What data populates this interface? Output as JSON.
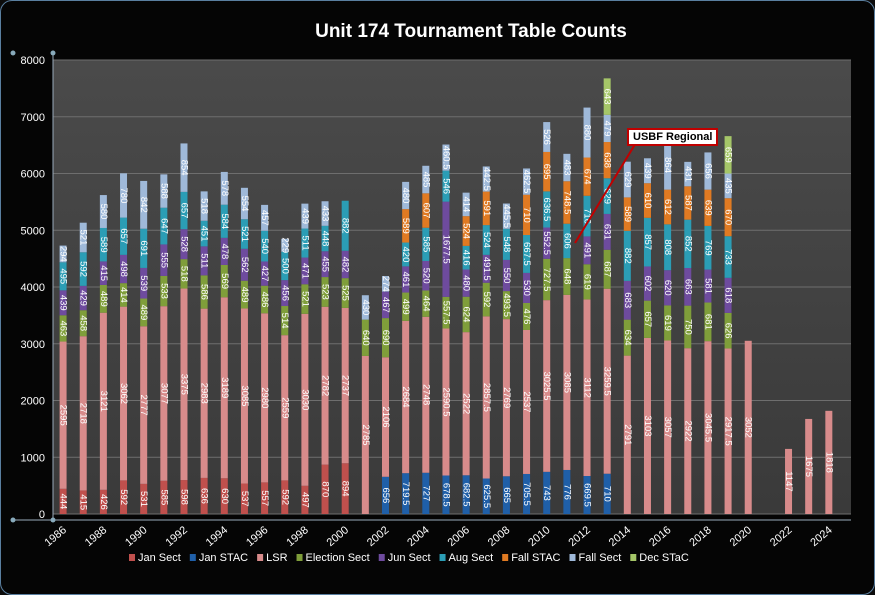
{
  "chart_data": {
    "type": "bar",
    "stacked": true,
    "title": "Unit 174 Tournament Table Counts",
    "ylim": [
      0,
      8000
    ],
    "yticks": [
      0,
      1000,
      2000,
      3000,
      4000,
      5000,
      6000,
      7000,
      8000
    ],
    "xlabels": [
      "1986",
      "1988",
      "1990",
      "1992",
      "1994",
      "1996",
      "1998",
      "2000",
      "2002",
      "2004",
      "2006",
      "2008",
      "2010",
      "2012",
      "2014",
      "2016",
      "2018",
      "2020",
      "2022",
      "2024"
    ],
    "grid": true,
    "legend_position": "bottom",
    "years": [
      1986,
      1987,
      1988,
      1989,
      1990,
      1991,
      1992,
      1993,
      1994,
      1995,
      1996,
      1997,
      1998,
      1999,
      2000,
      2001,
      2002,
      2003,
      2004,
      2005,
      2006,
      2007,
      2008,
      2009,
      2010,
      2011,
      2012,
      2013,
      2014,
      2015,
      2016,
      2017,
      2018,
      2019,
      2020,
      2021,
      2022,
      2023,
      2024
    ],
    "series": [
      {
        "name": "Jan Sect",
        "color": "#c0504d",
        "values": [
          444,
          415,
          426,
          592,
          531,
          585,
          598,
          636,
          630,
          537,
          557,
          592,
          497,
          870,
          894,
          0,
          0,
          0,
          0,
          0,
          0,
          0,
          0,
          0,
          0,
          0,
          0,
          0,
          0,
          0,
          0,
          0,
          0,
          0,
          0,
          0,
          0,
          0,
          0
        ]
      },
      {
        "name": "Jan STAC",
        "color": "#1f5fa8",
        "values": [
          0,
          0,
          0,
          0,
          0,
          0,
          0,
          0,
          0,
          0,
          0,
          0,
          0,
          0,
          0,
          0,
          656,
          719.5,
          727,
          678.5,
          682.5,
          625.5,
          665,
          705.5,
          743,
          776,
          669.5,
          710,
          0,
          0,
          0,
          0,
          0,
          0,
          0,
          0,
          0,
          0,
          0
        ]
      },
      {
        "name": "LSR",
        "color": "#d88b8b",
        "values": [
          2595,
          2718,
          3121,
          3062,
          2777,
          3077,
          3375,
          2983,
          3189,
          3085,
          2980,
          2559,
          3030,
          2782,
          2737,
          2785,
          2106,
          2684,
          2748,
          2590.5,
          2522,
          2857.5,
          2769,
          2537,
          3025.5,
          3085,
          3112,
          3259.5,
          2791,
          3103,
          3057,
          2922,
          3045.5,
          2917.5,
          3052,
          0,
          1147,
          1675,
          1818
        ]
      },
      {
        "name": "Election Sect",
        "color": "#7f9e3a",
        "values": [
          463,
          458,
          489,
          414,
          489,
          533,
          518,
          586,
          569,
          489,
          486,
          514,
          521,
          523,
          525,
          640,
          690,
          499,
          464,
          557.5,
          624,
          592,
          493.5,
          476,
          727.5,
          648,
          619,
          687,
          634,
          657,
          619,
          750,
          681,
          626,
          0,
          0,
          0,
          0,
          0
        ]
      },
      {
        "name": "Jun Sect",
        "color": "#6e4b9e",
        "values": [
          439,
          429,
          415,
          498,
          539,
          555,
          528,
          511,
          478,
          562,
          427,
          456,
          471,
          455,
          482,
          0,
          467,
          461,
          520,
          1677.5,
          480,
          491.5,
          550,
          530,
          552.5,
          0,
          491,
          631,
          683,
          602,
          620,
          663,
          581,
          618,
          0,
          0,
          0,
          0,
          0
        ]
      },
      {
        "name": "Aug Sect",
        "color": "#2b9db5",
        "values": [
          495,
          592,
          589,
          657,
          691,
          647,
          657,
          451,
          584,
          521,
          540,
          500,
          511,
          448,
          882,
          0,
          0,
          420,
          585,
          546,
          416,
          524,
          548,
          667.5,
          636.5,
          606,
          716,
          629,
          882,
          857,
          808,
          852,
          769,
          733,
          0,
          0,
          0,
          0,
          0
        ]
      },
      {
        "name": "Fall STAC",
        "color": "#e07a22",
        "values": [
          0,
          0,
          0,
          0,
          0,
          0,
          0,
          0,
          0,
          0,
          0,
          0,
          0,
          0,
          0,
          0,
          0,
          589,
          607,
          0,
          524,
          591,
          0,
          710,
          695,
          748.5,
          674,
          638,
          589,
          610,
          612,
          587,
          639,
          670,
          0,
          0,
          0,
          0,
          0
        ]
      },
      {
        "name": "Fall Sect",
        "color": "#9fb9d9",
        "values": [
          294,
          521,
          580,
          780,
          842,
          588,
          854,
          518,
          578,
          554,
          457,
          229,
          439,
          433,
          0,
          430,
          274,
          480,
          485,
          460.5,
          414,
          442.5,
          445.5,
          462.5,
          526,
          483,
          880,
          479,
          629,
          439,
          864,
          431,
          656,
          435,
          0,
          0,
          0,
          0,
          0
        ]
      },
      {
        "name": "Dec STaC",
        "color": "#a5c668",
        "values": [
          0,
          0,
          0,
          0,
          0,
          0,
          0,
          0,
          0,
          0,
          0,
          0,
          0,
          0,
          0,
          0,
          0,
          0,
          0,
          0,
          0,
          0,
          0,
          0,
          0,
          0,
          0,
          643,
          0,
          0,
          0,
          0,
          0,
          659,
          0,
          0,
          0,
          0,
          0
        ]
      }
    ],
    "annotations": [
      {
        "text": "USBF Regional",
        "year": 2011
      }
    ]
  },
  "annotations_text": {
    "usbf": "USBF Regional"
  }
}
